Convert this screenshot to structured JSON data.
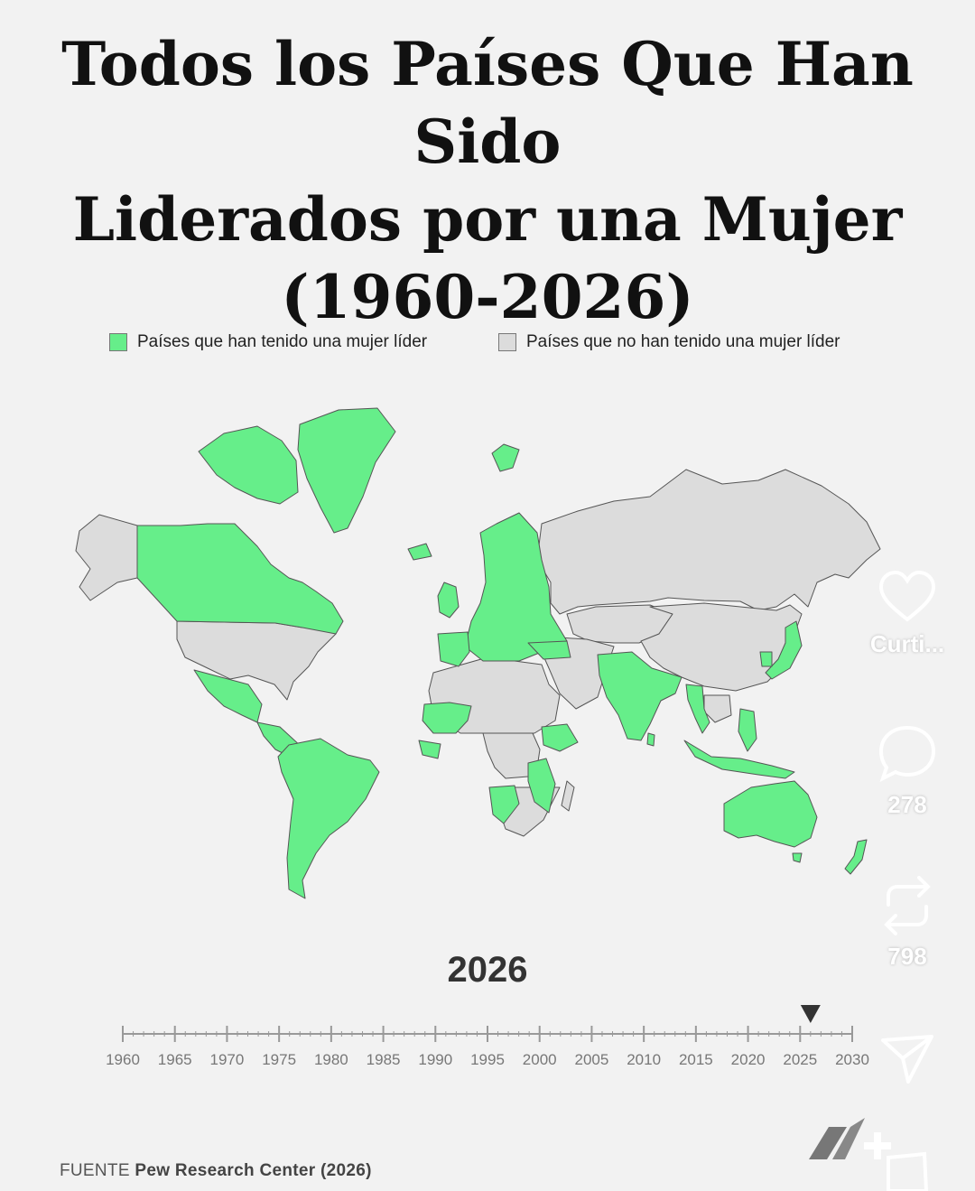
{
  "title_lines": [
    "Todos los Países Que Han Sido",
    "Liderados por una Mujer",
    "(1960-2026)"
  ],
  "legend": {
    "led": {
      "label": "Países que han tenido una mujer líder",
      "color": "#66ee8a"
    },
    "not_led": {
      "label": "Países que no han tenido una mujer líder",
      "color": "#dcdcdc"
    }
  },
  "map": {
    "border_color": "#555555",
    "led_regions": [
      "Canada",
      "Greenland",
      "Iceland",
      "Mexico",
      "Central America",
      "South America",
      "Europe",
      "Turkey",
      "India",
      "Bangladesh",
      "Sri Lanka",
      "Myanmar",
      "Thailand",
      "Philippines",
      "Indonesia",
      "Japan",
      "South Korea",
      "Australia",
      "New Zealand",
      "Ethiopia",
      "Tanzania",
      "Mozambique",
      "Malawi",
      "Namibia",
      "Zambia",
      "Liberia",
      "Mali",
      "Central African Republic"
    ],
    "not_led_regions": [
      "United States",
      "Russia",
      "China",
      "Middle East",
      "North Africa",
      "Southern Africa",
      "Madagascar",
      "Central Asia"
    ]
  },
  "current_year": "2026",
  "timeline": {
    "ticks": [
      "1960",
      "1965",
      "1970",
      "1975",
      "1980",
      "1985",
      "1990",
      "1995",
      "2000",
      "2005",
      "2010",
      "2015",
      "2020",
      "2025",
      "2030"
    ],
    "start": 1960,
    "end": 2030,
    "marker_value": 2026
  },
  "source": {
    "prefix": "FUENTE",
    "name": "Pew Research Center (2026)"
  },
  "sidebar": {
    "like_label": "Curti...",
    "comments_count": "278",
    "reposts_count": "798"
  },
  "icons": {
    "like": "heart-icon",
    "comment": "comment-icon",
    "repost": "repost-icon",
    "share": "share-icon",
    "brand": "brand-logo"
  }
}
